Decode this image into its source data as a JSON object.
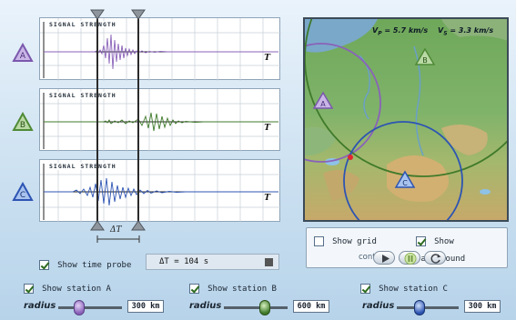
{
  "seismograms": [
    {
      "id": "A",
      "title": "SIGNAL STRENGTH",
      "axis": "T",
      "color": "#8a62b9"
    },
    {
      "id": "B",
      "title": "SIGNAL STRENGTH",
      "axis": "T",
      "color": "#3f7a2a"
    },
    {
      "id": "C",
      "title": "SIGNAL STRENGTH",
      "axis": "T",
      "color": "#2d54b3"
    }
  ],
  "delta_t_label": "ΔT",
  "time_probe": {
    "checkbox_label": "Show time probe",
    "checked": true,
    "readout": "ΔT = 104 s"
  },
  "map": {
    "vp_label": "V",
    "vp_sub": "P",
    "vp_value": " = 5.7 km/s",
    "vs_label": "V",
    "vs_sub": "S",
    "vs_value": " = 3.3 km/s",
    "stations": [
      "A",
      "B",
      "C"
    ]
  },
  "map_options": {
    "show_grid": {
      "label": "Show grid",
      "checked": false
    },
    "show_background": {
      "label": "Show background",
      "checked": true
    },
    "controls_label": "controls:"
  },
  "stations": [
    {
      "label": "Show station A",
      "checked": true,
      "radius_label": "radius",
      "radius_value": "300 km",
      "color": "#8a62b9"
    },
    {
      "label": "Show station B",
      "checked": true,
      "radius_label": "radius",
      "radius_value": "600 km",
      "color": "#3f7a2a"
    },
    {
      "label": "Show station C",
      "checked": true,
      "radius_label": "radius",
      "radius_value": "300 km",
      "color": "#2d54b3"
    }
  ]
}
